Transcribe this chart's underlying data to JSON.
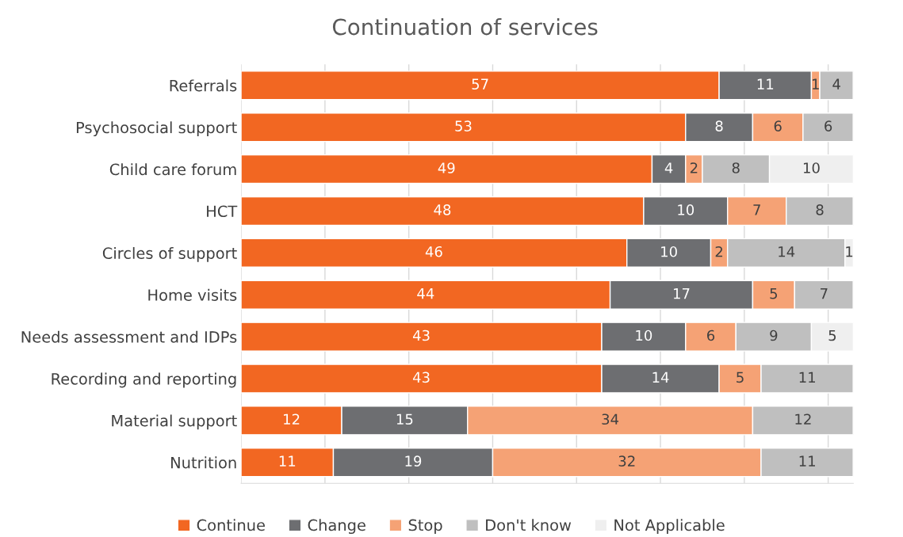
{
  "chart_data": {
    "type": "bar",
    "title": "Continuation of services",
    "orientation": "horizontal",
    "stacked": true,
    "categories": [
      "Referrals",
      "Psychosocial support",
      "Child care forum",
      "HCT",
      "Circles of support",
      "Home visits",
      "Needs assessment and IDPs",
      "Recording and reporting",
      "Material support",
      "Nutrition"
    ],
    "series": [
      {
        "name": "Continue",
        "color": "#f26722",
        "values": [
          57,
          53,
          49,
          48,
          46,
          44,
          43,
          43,
          12,
          11
        ]
      },
      {
        "name": "Change",
        "color": "#6d6e71",
        "values": [
          11,
          8,
          4,
          10,
          10,
          17,
          10,
          14,
          15,
          19
        ]
      },
      {
        "name": "Stop",
        "color": "#f5a275",
        "values": [
          1,
          6,
          2,
          7,
          2,
          5,
          6,
          5,
          34,
          32
        ]
      },
      {
        "name": "Don't know",
        "color": "#bfbfbf",
        "values": [
          4,
          6,
          8,
          8,
          14,
          7,
          9,
          11,
          12,
          11
        ]
      },
      {
        "name": "Not Applicable",
        "color": "#efefef",
        "values": [
          null,
          null,
          10,
          null,
          1,
          null,
          5,
          null,
          null,
          null
        ]
      }
    ],
    "xlim": [
      0,
      73
    ],
    "xticks": [
      {
        "value": 0,
        "label": null
      },
      {
        "value": 10,
        "label": null
      },
      {
        "value": 20,
        "label": null
      },
      {
        "value": 30,
        "label": null
      },
      {
        "value": 40,
        "label": null
      },
      {
        "value": 50,
        "label": null
      },
      {
        "value": 60,
        "label": null
      },
      {
        "value": 70,
        "label": null
      }
    ],
    "grid": "x",
    "legend": "bottom",
    "data_labels": true,
    "tick_labels": "y"
  }
}
